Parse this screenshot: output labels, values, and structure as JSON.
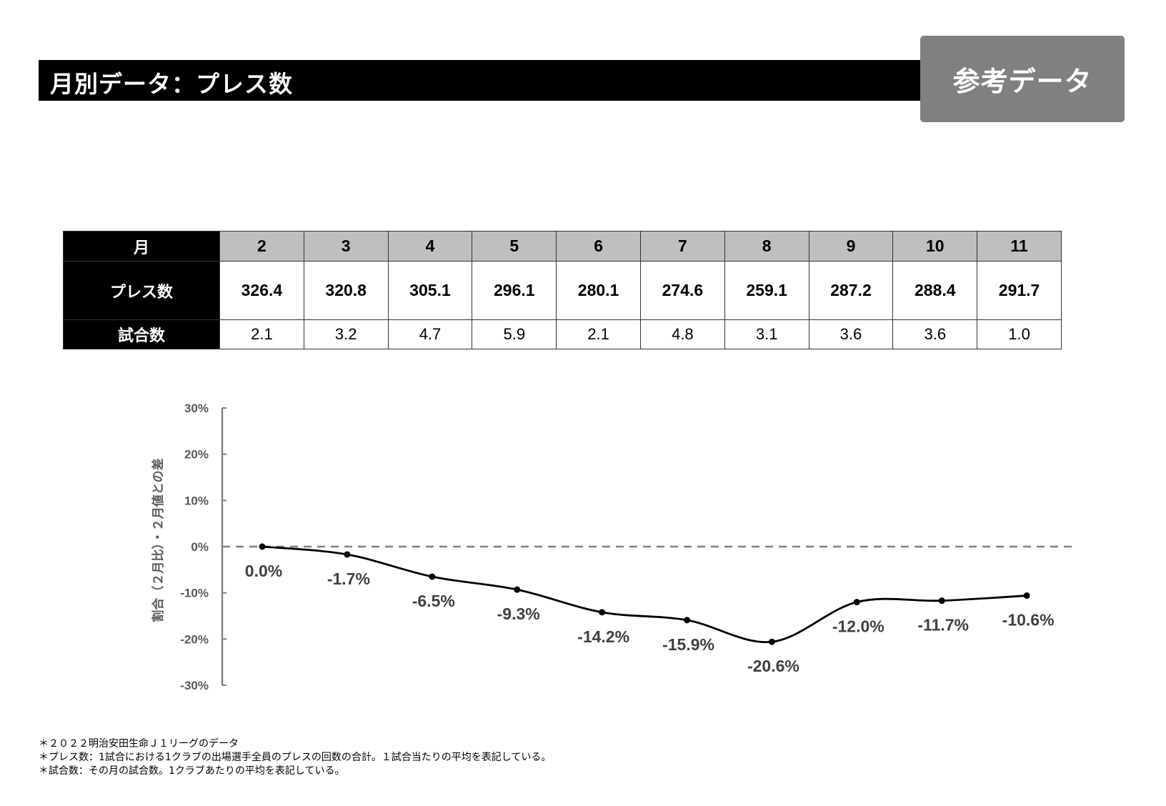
{
  "header": {
    "title": "月別データ：プレス数",
    "badge": "参考データ"
  },
  "table": {
    "row_labels": {
      "month": "月",
      "press": "プレス数",
      "games": "試合数"
    },
    "months": [
      "2",
      "3",
      "4",
      "5",
      "6",
      "7",
      "8",
      "9",
      "10",
      "11"
    ],
    "press": [
      "326.4",
      "320.8",
      "305.1",
      "296.1",
      "280.1",
      "274.6",
      "259.1",
      "287.2",
      "288.4",
      "291.7"
    ],
    "games": [
      "2.1",
      "3.2",
      "4.7",
      "5.9",
      "2.1",
      "4.8",
      "3.1",
      "3.6",
      "3.6",
      "1.0"
    ]
  },
  "chart_data": {
    "type": "line",
    "title": "",
    "ylabel": "割合（２月比）・２月値との差",
    "xlabel": "",
    "categories": [
      "2",
      "3",
      "4",
      "5",
      "6",
      "7",
      "8",
      "9",
      "10",
      "11"
    ],
    "series": [
      {
        "values": [
          0.0,
          -1.7,
          -6.5,
          -9.3,
          -14.2,
          -15.9,
          -20.6,
          -12.0,
          -11.7,
          -10.6
        ]
      }
    ],
    "data_labels": [
      "0.0%",
      "-1.7%",
      "-6.5%",
      "-9.3%",
      "-14.2%",
      "-15.9%",
      "-20.6%",
      "-12.0%",
      "-11.7%",
      "-10.6%"
    ],
    "ylim": [
      -30,
      30
    ],
    "yticks": [
      30,
      20,
      10,
      0,
      -10,
      -20,
      -30
    ],
    "ytick_labels": [
      "30%",
      "20%",
      "10%",
      "0%",
      "-10%",
      "-20%",
      "-30%"
    ],
    "zero_line": "dashed",
    "line_style": "smooth",
    "grid": false,
    "colors": {
      "line": "#000000",
      "axis": "#808080",
      "zero_line": "#808080",
      "tick_labels": "#595959",
      "data_labels": "#404040"
    }
  },
  "footnotes": [
    "＊２０２２明治安田生命Ｊ１リーグのデータ",
    "＊プレス数：1試合における1クラブの出場選手全員のプレスの回数の合計。１試合当たりの平均を表記している。",
    "＊試合数：その月の試合数。1クラブあたりの平均を表記している。"
  ]
}
